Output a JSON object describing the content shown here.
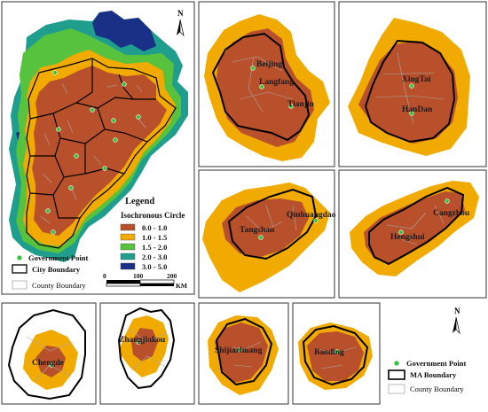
{
  "colors": {
    "band_0": "#b8502c",
    "band_1": "#f0aa00",
    "band_2": "#56c23d",
    "band_3": "#1f9e8e",
    "band_4": "#1a2f86",
    "government_point": "#33c63a"
  },
  "overview": {
    "north_label": "N",
    "legend": {
      "title": "Legend",
      "subtitle": "Isochronous Circle",
      "classes": [
        {
          "label": "0.0 - 1.0",
          "color": "#b8502c"
        },
        {
          "label": "1.0 - 1.5",
          "color": "#f0aa00"
        },
        {
          "label": "1.5 - 2.0",
          "color": "#56c23d"
        },
        {
          "label": "2.0 - 3.0",
          "color": "#1f9e8e"
        },
        {
          "label": "3.0 - 5.0",
          "color": "#1a2f86"
        }
      ],
      "government_point": "Government Point",
      "city_boundary": "City Boundary",
      "county_boundary": "County Boundary",
      "scale_ticks": [
        "0",
        "100",
        "200"
      ],
      "scale_unit": "KM"
    }
  },
  "panels": {
    "beijing_tianjin": {
      "labels": [
        "Beijing",
        "Langfang",
        "Tianjin"
      ]
    },
    "xingtai_handan": {
      "labels": [
        "XingTai",
        "HanDan"
      ]
    },
    "tangshan": {
      "labels": [
        "Qinhuangdao",
        "Tangshan"
      ]
    },
    "cangzhou": {
      "labels": [
        "Cangzhou",
        "Hengshui"
      ]
    },
    "chengde": {
      "labels": [
        "Chengde"
      ]
    },
    "zhangjiakou": {
      "labels": [
        "Zhangjiakou"
      ]
    },
    "shijiazhuang": {
      "labels": [
        "Shijiazhuang"
      ]
    },
    "baoding": {
      "labels": [
        "Baoding"
      ]
    }
  },
  "bottom_legend": {
    "north_label": "N",
    "government_point": "Government Point",
    "ma_boundary": "MA Boundary",
    "county_boundary": "County Boundary"
  }
}
